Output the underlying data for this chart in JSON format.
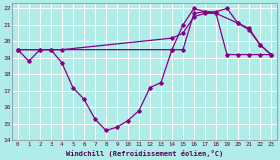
{
  "xlabel": "Windchill (Refroidissement éolien,°C)",
  "background_color": "#b0ece8",
  "grid_color": "#a0d8d4",
  "line_color": "#880088",
  "xlim": [
    -0.5,
    23.5
  ],
  "ylim": [
    14,
    22.3
  ],
  "yticks": [
    14,
    15,
    16,
    17,
    18,
    19,
    20,
    21,
    22
  ],
  "xticks": [
    0,
    1,
    2,
    3,
    4,
    5,
    6,
    7,
    8,
    9,
    10,
    11,
    12,
    13,
    14,
    15,
    16,
    17,
    18,
    19,
    20,
    21,
    22,
    23
  ],
  "series1_x": [
    0,
    1,
    2,
    3,
    4,
    5,
    6,
    7,
    8,
    9,
    10,
    11,
    12,
    13,
    14,
    15,
    16,
    17,
    18,
    19,
    20,
    21,
    22,
    23
  ],
  "series1_y": [
    19.5,
    18.8,
    19.5,
    19.5,
    18.7,
    17.2,
    16.5,
    15.3,
    14.6,
    14.8,
    15.2,
    15.8,
    17.2,
    17.5,
    19.5,
    21.0,
    22.0,
    21.8,
    21.8,
    22.0,
    21.1,
    20.7,
    19.8,
    19.2
  ],
  "series2_x": [
    0,
    14,
    15,
    16,
    17,
    18,
    19,
    20,
    21,
    22,
    23
  ],
  "series2_y": [
    19.5,
    19.5,
    19.5,
    21.7,
    21.8,
    21.7,
    19.2,
    19.2,
    19.2,
    19.2,
    19.2
  ],
  "series3_x": [
    0,
    2,
    3,
    4,
    14,
    15,
    16,
    17,
    18,
    20,
    21,
    22,
    23
  ],
  "series3_y": [
    19.5,
    19.5,
    19.5,
    19.5,
    20.2,
    20.5,
    21.5,
    21.7,
    21.7,
    21.1,
    20.8,
    19.8,
    19.2
  ]
}
